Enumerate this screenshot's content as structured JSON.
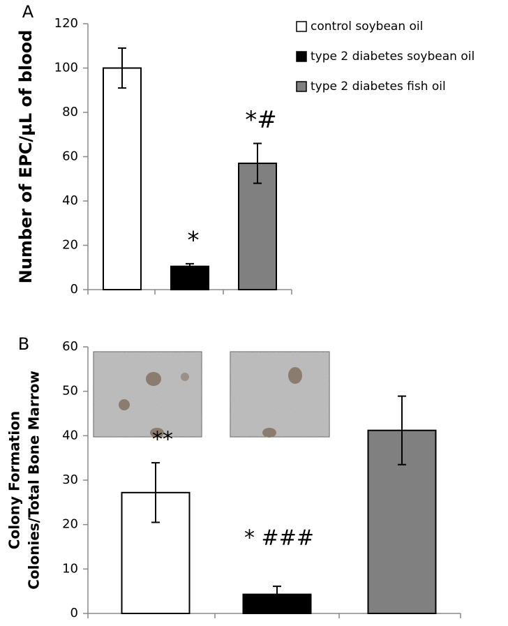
{
  "chart_data": [
    {
      "type": "bar",
      "panel": "A",
      "y_label": "Number of EPC/µL of blood",
      "ylim": [
        0,
        120
      ],
      "yticks": [
        0,
        20,
        40,
        60,
        80,
        100,
        120
      ],
      "legend": "top-right",
      "series": [
        {
          "name": "control soybean oil",
          "color": "#ffffff",
          "values": [
            100
          ],
          "errors": [
            9
          ]
        },
        {
          "name": "type 2 diabetes soybean oil",
          "color": "#000000",
          "values": [
            10.5
          ],
          "errors": [
            1.2
          ],
          "annotation": "*"
        },
        {
          "name": "type 2 diabetes fish oil",
          "color": "#808080",
          "values": [
            57
          ],
          "errors": [
            9
          ],
          "annotation": "*#"
        }
      ]
    },
    {
      "type": "bar",
      "panel": "B",
      "y_label": [
        "Colony Formation",
        "Colonies/Total Bone Marrow"
      ],
      "ylim": [
        0,
        60
      ],
      "yticks": [
        0,
        10,
        20,
        30,
        40,
        50,
        60
      ],
      "series": [
        {
          "color": "#ffffff",
          "values": [
            27.2
          ],
          "errors": [
            6.7
          ],
          "annotation": "**"
        },
        {
          "color": "#000000",
          "values": [
            4.3
          ],
          "errors": [
            1.8
          ],
          "annotation": "* ###"
        },
        {
          "color": "#808080",
          "values": [
            41.2
          ],
          "errors": [
            7.7
          ]
        }
      ]
    }
  ]
}
